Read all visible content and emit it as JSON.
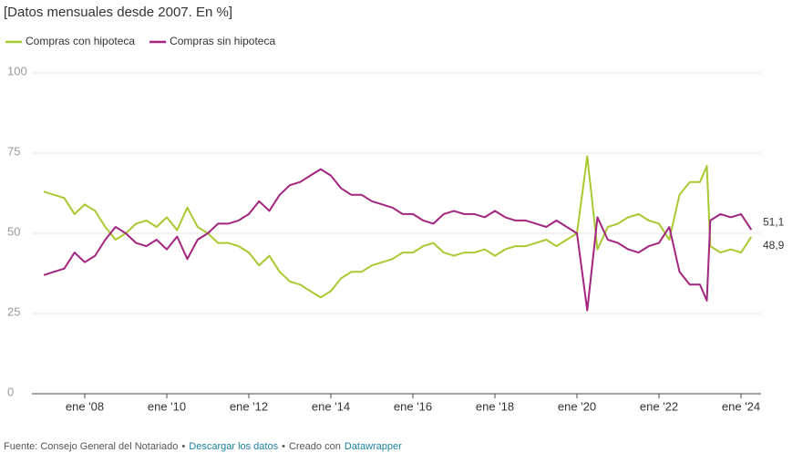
{
  "chart_data": {
    "type": "line",
    "subtitle": "[Datos mensuales desde 2007. En %]",
    "x": [
      "2007-01",
      "2007-04",
      "2007-07",
      "2007-10",
      "2008-01",
      "2008-04",
      "2008-07",
      "2008-10",
      "2009-01",
      "2009-04",
      "2009-07",
      "2009-10",
      "2010-01",
      "2010-04",
      "2010-07",
      "2010-10",
      "2011-01",
      "2011-04",
      "2011-07",
      "2011-10",
      "2012-01",
      "2012-04",
      "2012-07",
      "2012-10",
      "2013-01",
      "2013-04",
      "2013-07",
      "2013-10",
      "2014-01",
      "2014-04",
      "2014-07",
      "2014-10",
      "2015-01",
      "2015-04",
      "2015-07",
      "2015-10",
      "2016-01",
      "2016-04",
      "2016-07",
      "2016-10",
      "2017-01",
      "2017-04",
      "2017-07",
      "2017-10",
      "2018-01",
      "2018-04",
      "2018-07",
      "2018-10",
      "2019-01",
      "2019-04",
      "2019-07",
      "2019-10",
      "2020-01",
      "2020-04",
      "2020-07",
      "2020-10",
      "2021-01",
      "2021-04",
      "2021-07",
      "2021-10",
      "2022-01",
      "2022-04",
      "2022-07",
      "2022-10",
      "2023-01",
      "2023-03",
      "2023-04",
      "2023-07",
      "2023-10",
      "2024-01",
      "2024-04"
    ],
    "series": [
      {
        "name": "Compras con hipoteca",
        "color": "#a8c92f",
        "end_label": "48,9",
        "values": [
          63,
          62,
          61,
          56,
          59,
          57,
          52,
          48,
          50,
          53,
          54,
          52,
          55,
          51,
          58,
          52,
          50,
          47,
          47,
          46,
          44,
          40,
          43,
          38,
          35,
          34,
          32,
          30,
          32,
          36,
          38,
          38,
          40,
          41,
          42,
          44,
          44,
          46,
          47,
          44,
          43,
          44,
          44,
          45,
          43,
          45,
          46,
          46,
          47,
          48,
          46,
          48,
          50,
          74,
          45,
          52,
          53,
          55,
          56,
          54,
          53,
          48,
          62,
          66,
          66,
          71,
          46,
          44,
          45,
          44,
          48.9
        ]
      },
      {
        "name": "Compras sin hipoteca",
        "color": "#a3257f",
        "end_label": "51,1",
        "values": [
          37,
          38,
          39,
          44,
          41,
          43,
          48,
          52,
          50,
          47,
          46,
          48,
          45,
          49,
          42,
          48,
          50,
          53,
          53,
          54,
          56,
          60,
          57,
          62,
          65,
          66,
          68,
          70,
          68,
          64,
          62,
          62,
          60,
          59,
          58,
          56,
          56,
          54,
          53,
          56,
          57,
          56,
          56,
          55,
          57,
          55,
          54,
          54,
          53,
          52,
          54,
          52,
          50,
          26,
          55,
          48,
          47,
          45,
          44,
          46,
          47,
          52,
          38,
          34,
          34,
          29,
          54,
          56,
          55,
          56,
          51.1
        ]
      }
    ],
    "xlim": [
      "2007-01",
      "2024-05"
    ],
    "xticks": [
      {
        "value": "2008-01",
        "label": "ene '08"
      },
      {
        "value": "2010-01",
        "label": "ene '10"
      },
      {
        "value": "2012-01",
        "label": "ene '12"
      },
      {
        "value": "2014-01",
        "label": "ene '14"
      },
      {
        "value": "2016-01",
        "label": "ene '16"
      },
      {
        "value": "2018-01",
        "label": "ene '18"
      },
      {
        "value": "2020-01",
        "label": "ene '20"
      },
      {
        "value": "2022-01",
        "label": "ene '22"
      },
      {
        "value": "2024-01",
        "label": "ene '24"
      }
    ],
    "ylim": [
      0,
      100
    ],
    "yticks": [
      0,
      25,
      50,
      75,
      100
    ],
    "grid": true,
    "footer": {
      "source": "Fuente: Consejo General del Notariado",
      "download": "Descargar los datos",
      "created": "Creado con",
      "tool": "Datawrapper"
    }
  }
}
